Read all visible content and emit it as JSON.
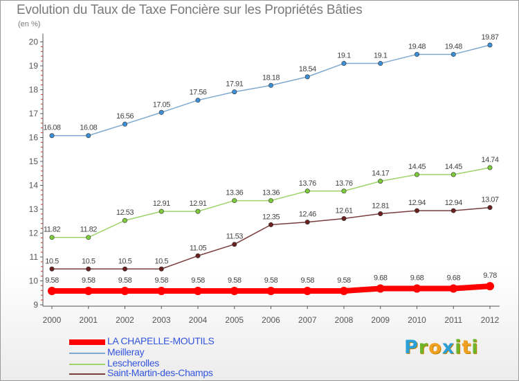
{
  "title": "Evolution du Taux de Taxe Foncière sur les Propriétés Bâties",
  "unit_label": "(en %)",
  "logo": {
    "text": "Proxiti",
    "letters": [
      {
        "ch": "P",
        "color": "#2a9fd8"
      },
      {
        "ch": "r",
        "color": "#6fb52a"
      },
      {
        "ch": "o",
        "color": "#f0a020"
      },
      {
        "ch": "x",
        "color": "#2a9fd8"
      },
      {
        "ch": "i",
        "color": "#6fb52a"
      },
      {
        "ch": "t",
        "color": "#f0a020"
      },
      {
        "ch": "i",
        "color": "#6fb52a"
      }
    ]
  },
  "chart_data": {
    "type": "line",
    "x": [
      "2000",
      "2001",
      "2002",
      "2003",
      "2004",
      "2005",
      "2006",
      "2007",
      "2008",
      "2009",
      "2010",
      "2011",
      "2012"
    ],
    "ylim": [
      9,
      20
    ],
    "yticks": [
      "9",
      "10",
      "11",
      "12",
      "13",
      "14",
      "15",
      "16",
      "17",
      "18",
      "19",
      "20"
    ],
    "grid": false,
    "legend_position": "bottom-left",
    "series": [
      {
        "name": "LA CHAPELLE-MOUTILS",
        "color": "#ff0000",
        "marker": "#ff0000",
        "width": 8,
        "values": [
          9.58,
          9.58,
          9.58,
          9.58,
          9.58,
          9.58,
          9.58,
          9.58,
          9.58,
          9.68,
          9.68,
          9.68,
          9.78
        ],
        "labels": [
          "9.58",
          "9.58",
          "9.58",
          "9.58",
          "9.58",
          "9.58",
          "9.58",
          "9.58",
          "9.58",
          "9.68",
          "9.68",
          "9.68",
          "9.78"
        ]
      },
      {
        "name": "Meilleray",
        "color": "#7fa8d0",
        "marker": "#3d8fd6",
        "width": 1.5,
        "values": [
          16.08,
          16.08,
          16.56,
          17.05,
          17.56,
          17.91,
          18.18,
          18.54,
          19.1,
          19.1,
          19.48,
          19.48,
          19.87
        ],
        "labels": [
          "16.08",
          "16.08",
          "16.56",
          "17.05",
          "17.56",
          "17.91",
          "18.18",
          "18.54",
          "19.1",
          "19.1",
          "19.48",
          "19.48",
          "19.87"
        ]
      },
      {
        "name": "Lescherolles",
        "color": "#9ed36a",
        "marker": "#7dcb3a",
        "width": 1.5,
        "values": [
          11.82,
          11.82,
          12.53,
          12.91,
          12.91,
          13.36,
          13.36,
          13.76,
          13.76,
          14.17,
          14.45,
          14.45,
          14.74
        ],
        "labels": [
          "11.82",
          "11.82",
          "12.53",
          "12.91",
          "12.91",
          "13.36",
          "13.36",
          "13.76",
          "13.76",
          "14.17",
          "14.45",
          "14.45",
          "14.74"
        ]
      },
      {
        "name": "Saint-Martin-des-Champs",
        "color": "#7a3d3d",
        "marker": "#6b2020",
        "width": 1.5,
        "values": [
          10.5,
          10.5,
          10.5,
          10.5,
          11.05,
          11.53,
          12.35,
          12.46,
          12.61,
          12.81,
          12.94,
          12.94,
          13.07
        ],
        "labels": [
          "10.5",
          "10.5",
          "10.5",
          "10.5",
          "11.05",
          "11.53",
          "12.35",
          "12.46",
          "12.61",
          "12.81",
          "12.94",
          "12.94",
          "13.07"
        ]
      }
    ]
  }
}
